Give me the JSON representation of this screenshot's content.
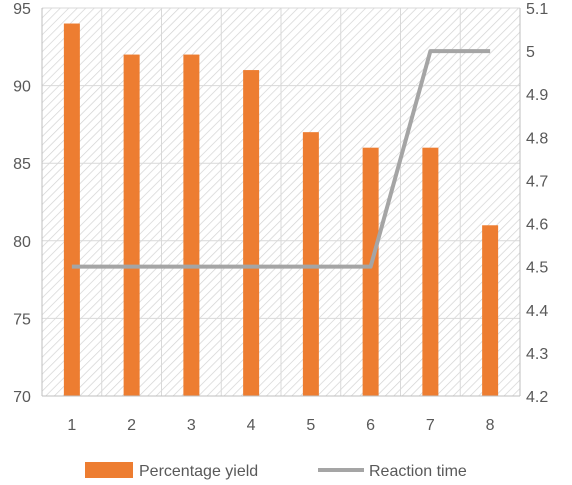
{
  "chart_data": {
    "type": "bar",
    "categories": [
      "1",
      "2",
      "3",
      "4",
      "5",
      "6",
      "7",
      "8"
    ],
    "series": [
      {
        "name": "Percentage yield",
        "type": "bar",
        "axis": "left",
        "values": [
          94,
          92,
          92,
          91,
          87,
          86,
          86,
          81
        ],
        "color": "#ED7D31"
      },
      {
        "name": "Reaction time",
        "type": "line",
        "axis": "right",
        "values": [
          4.5,
          4.5,
          4.5,
          4.5,
          4.5,
          4.5,
          5.0,
          5.0
        ],
        "color": "#A5A5A5"
      }
    ],
    "y_left": {
      "min": 70,
      "max": 95,
      "step": 5,
      "ticks": [
        "70",
        "75",
        "80",
        "85",
        "90",
        "95"
      ]
    },
    "y_right": {
      "min": 4.2,
      "max": 5.1,
      "step": 0.1,
      "ticks": [
        "4.2",
        "4.3",
        "4.4",
        "4.5",
        "4.6",
        "4.7",
        "4.8",
        "4.9",
        "5",
        "5.1"
      ]
    },
    "grid": true,
    "plot_background": "diagonal-hatch",
    "legend_position": "bottom"
  }
}
